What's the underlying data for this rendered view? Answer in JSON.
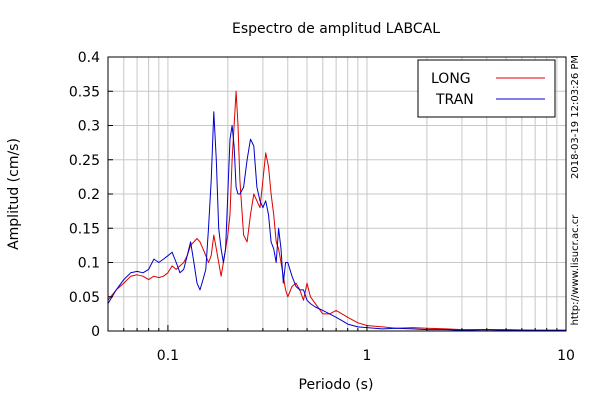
{
  "chart_data": {
    "type": "line",
    "title": "Espectro de amplitud LABCAL",
    "xlabel": "Periodo (s)",
    "ylabel": "Amplitud (cm/s)",
    "x_scale": "log",
    "xlim": [
      0.05,
      10
    ],
    "ylim": [
      0,
      0.4
    ],
    "grid": true,
    "legend_position": "top-right",
    "x_ticks": [
      {
        "value": 0.1,
        "label": "0.1"
      },
      {
        "value": 1,
        "label": "1"
      },
      {
        "value": 10,
        "label": "10"
      }
    ],
    "y_ticks": [
      {
        "value": 0,
        "label": "0"
      },
      {
        "value": 0.05,
        "label": "0.05"
      },
      {
        "value": 0.1,
        "label": "0.1"
      },
      {
        "value": 0.15,
        "label": "0.15"
      },
      {
        "value": 0.2,
        "label": "0.2"
      },
      {
        "value": 0.25,
        "label": "0.25"
      },
      {
        "value": 0.3,
        "label": "0.3"
      },
      {
        "value": 0.35,
        "label": "0.35"
      },
      {
        "value": 0.4,
        "label": "0.4"
      }
    ],
    "series": [
      {
        "name": "LONG",
        "color": "#dd0000",
        "x": [
          0.05,
          0.055,
          0.06,
          0.065,
          0.07,
          0.075,
          0.08,
          0.085,
          0.09,
          0.095,
          0.1,
          0.105,
          0.11,
          0.115,
          0.12,
          0.125,
          0.13,
          0.135,
          0.14,
          0.145,
          0.15,
          0.155,
          0.16,
          0.165,
          0.17,
          0.175,
          0.18,
          0.185,
          0.19,
          0.195,
          0.2,
          0.205,
          0.21,
          0.215,
          0.22,
          0.225,
          0.23,
          0.24,
          0.25,
          0.26,
          0.27,
          0.28,
          0.29,
          0.3,
          0.31,
          0.32,
          0.33,
          0.34,
          0.35,
          0.36,
          0.37,
          0.38,
          0.39,
          0.4,
          0.42,
          0.44,
          0.46,
          0.48,
          0.5,
          0.52,
          0.55,
          0.6,
          0.65,
          0.7,
          0.75,
          0.8,
          0.9,
          1.0,
          1.2,
          1.4,
          1.7,
          2.0,
          2.5,
          3.0,
          4.0,
          5.0,
          7.0,
          10.0
        ],
        "y": [
          0.045,
          0.06,
          0.07,
          0.08,
          0.082,
          0.08,
          0.075,
          0.08,
          0.078,
          0.08,
          0.085,
          0.095,
          0.09,
          0.095,
          0.1,
          0.11,
          0.125,
          0.13,
          0.135,
          0.13,
          0.12,
          0.11,
          0.1,
          0.11,
          0.14,
          0.12,
          0.1,
          0.08,
          0.1,
          0.12,
          0.14,
          0.17,
          0.25,
          0.3,
          0.35,
          0.3,
          0.22,
          0.14,
          0.13,
          0.17,
          0.2,
          0.19,
          0.18,
          0.22,
          0.26,
          0.24,
          0.2,
          0.17,
          0.13,
          0.12,
          0.1,
          0.08,
          0.06,
          0.05,
          0.065,
          0.07,
          0.06,
          0.045,
          0.07,
          0.05,
          0.04,
          0.025,
          0.025,
          0.03,
          0.025,
          0.02,
          0.012,
          0.008,
          0.006,
          0.004,
          0.005,
          0.004,
          0.003,
          0.002,
          0.002,
          0.002,
          0.001,
          0.001
        ]
      },
      {
        "name": "TRAN",
        "color": "#0000cc",
        "x": [
          0.05,
          0.055,
          0.06,
          0.065,
          0.07,
          0.075,
          0.08,
          0.085,
          0.09,
          0.095,
          0.1,
          0.105,
          0.11,
          0.115,
          0.12,
          0.125,
          0.13,
          0.135,
          0.14,
          0.145,
          0.15,
          0.155,
          0.16,
          0.165,
          0.17,
          0.175,
          0.18,
          0.185,
          0.19,
          0.195,
          0.2,
          0.205,
          0.21,
          0.215,
          0.22,
          0.225,
          0.23,
          0.24,
          0.25,
          0.26,
          0.27,
          0.28,
          0.29,
          0.3,
          0.31,
          0.32,
          0.33,
          0.34,
          0.35,
          0.36,
          0.37,
          0.38,
          0.39,
          0.4,
          0.42,
          0.44,
          0.46,
          0.48,
          0.5,
          0.52,
          0.55,
          0.6,
          0.65,
          0.7,
          0.75,
          0.8,
          0.9,
          1.0,
          1.2,
          1.4,
          1.7,
          2.0,
          2.5,
          3.0,
          4.0,
          5.0,
          7.0,
          10.0
        ],
        "y": [
          0.04,
          0.06,
          0.075,
          0.085,
          0.087,
          0.085,
          0.09,
          0.105,
          0.1,
          0.105,
          0.11,
          0.115,
          0.1,
          0.085,
          0.09,
          0.11,
          0.13,
          0.1,
          0.07,
          0.06,
          0.075,
          0.09,
          0.15,
          0.22,
          0.32,
          0.25,
          0.15,
          0.12,
          0.1,
          0.12,
          0.2,
          0.28,
          0.3,
          0.27,
          0.21,
          0.2,
          0.2,
          0.21,
          0.25,
          0.28,
          0.27,
          0.21,
          0.19,
          0.18,
          0.19,
          0.17,
          0.13,
          0.12,
          0.1,
          0.15,
          0.12,
          0.07,
          0.1,
          0.1,
          0.08,
          0.065,
          0.06,
          0.06,
          0.045,
          0.04,
          0.035,
          0.03,
          0.025,
          0.02,
          0.015,
          0.01,
          0.006,
          0.005,
          0.003,
          0.004,
          0.003,
          0.002,
          0.002,
          0.001,
          0.002,
          0.001,
          0.001,
          0.001
        ]
      }
    ]
  },
  "side_note": {
    "url": "http://www.lisucr.ac.cr",
    "timestamp": "2018-03-19 12:03:26 PM"
  }
}
